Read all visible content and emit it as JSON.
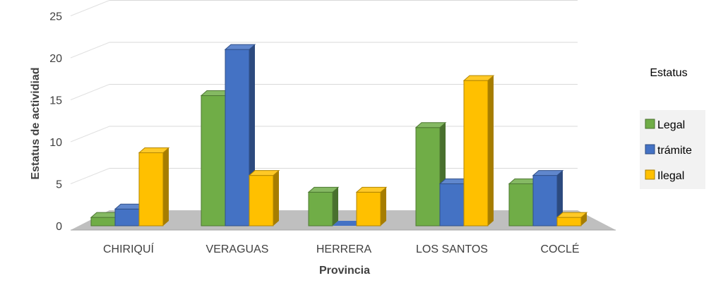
{
  "chart_data": {
    "type": "bar",
    "style": "3d-clustered-column",
    "categories": [
      "CHIRIQUÍ",
      "VERAGUAS",
      "HERRERA",
      "LOS SANTOS",
      "COCLÉ"
    ],
    "series": [
      {
        "name": "Legal",
        "values": [
          1,
          15.5,
          4,
          11.7,
          5
        ],
        "color": "#70ad47"
      },
      {
        "name": "trámite",
        "values": [
          2,
          21,
          0,
          5,
          6
        ],
        "color": "#4472c4"
      },
      {
        "name": "Ilegal",
        "values": [
          8.7,
          6,
          4,
          17.3,
          1
        ],
        "color": "#ffc000"
      }
    ],
    "xlabel": "Provincia",
    "ylabel": "Estatus de actividiad",
    "ylim": [
      0,
      25
    ],
    "yticks": [
      "0",
      "5",
      "10",
      "15",
      "20",
      "25"
    ],
    "legend_title": "Estatus",
    "legend_position": "right",
    "grid": true
  }
}
